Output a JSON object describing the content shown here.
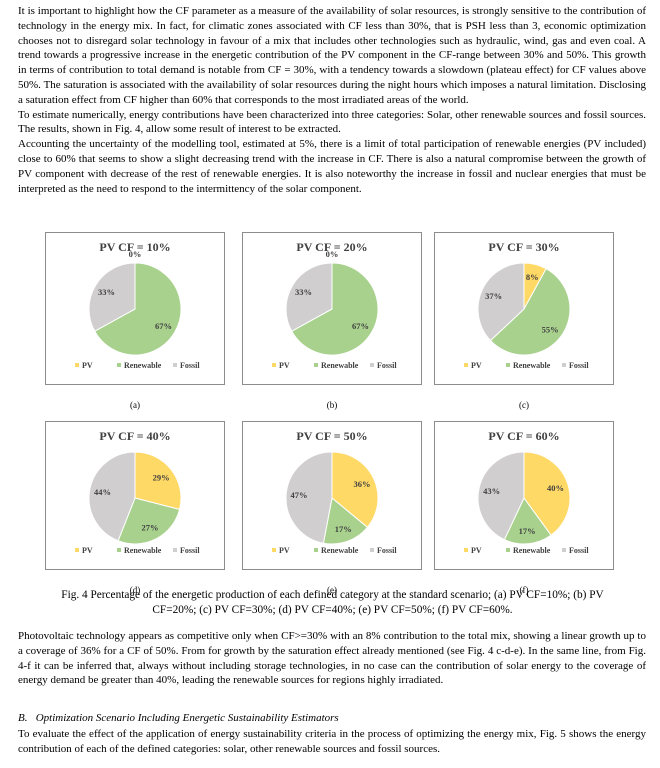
{
  "paragraphs_before": [
    "It is important to highlight how the CF parameter as a measure of the availability of solar resources, is strongly sensitive to the contribution of technology in the energy mix. In fact, for climatic zones associated with CF less than 30%, that is PSH less than 3, economic optimization chooses not to disregard solar technology in favour of a mix that includes other technologies such as hydraulic, wind, gas and even coal. A trend towards a progressive increase in the energetic contribution of the PV component in the CF-range between 30% and 50%. This growth in terms of contribution to total demand is notable from CF = 30%, with a tendency towards a slowdown (plateau effect) for CF values above 50%. The saturation is associated with the availability of solar resources during the night hours which imposes a natural limitation. Disclosing a saturation effect from CF higher than 60% that corresponds to the most irradiated areas of the world.",
    "To estimate numerically, energy contributions have been characterized into three categories: Solar, other renewable sources and fossil sources. The results, shown in Fig. 4, allow some result of interest to be extracted.",
    "Accounting the uncertainty of the modelling tool, estimated at 5%, there is a limit of total participation of renewable energies (PV included) close to 60% that seems to show a slight decreasing trend with the increase in CF. There is also a natural compromise between the growth of PV component with decrease of the rest of renewable energies. It is also noteworthy the increase in fossil and nuclear energies that must be interpreted as the need to respond to the intermittency of the solar component."
  ],
  "figure": {
    "charts": [
      {
        "type": "pie",
        "title": "PV CF = 10%",
        "categories": [
          "PV",
          "Renewable",
          "Fossil"
        ],
        "colors": [
          "#ffd966",
          "#a9d18e",
          "#d0cece"
        ],
        "values": [
          0,
          67,
          33
        ],
        "value_labels": [
          "0%",
          "67%",
          "33%"
        ],
        "sublabel": "(a)"
      },
      {
        "type": "pie",
        "title": "PV CF = 20%",
        "categories": [
          "PV",
          "Renewable",
          "Fossil"
        ],
        "colors": [
          "#ffd966",
          "#a9d18e",
          "#d0cece"
        ],
        "values": [
          0,
          67,
          33
        ],
        "value_labels": [
          "0%",
          "67%",
          "33%"
        ],
        "sublabel": "(b)"
      },
      {
        "type": "pie",
        "title": "PV CF = 30%",
        "categories": [
          "PV",
          "Renewable",
          "Fossil"
        ],
        "colors": [
          "#ffd966",
          "#a9d18e",
          "#d0cece"
        ],
        "values": [
          8,
          55,
          37
        ],
        "value_labels": [
          "8%",
          "55%",
          "37%"
        ],
        "sublabel": "(c)"
      },
      {
        "type": "pie",
        "title": "PV CF = 40%",
        "categories": [
          "PV",
          "Renewable",
          "Fossil"
        ],
        "colors": [
          "#ffd966",
          "#a9d18e",
          "#d0cece"
        ],
        "values": [
          29,
          27,
          44
        ],
        "value_labels": [
          "29%",
          "27%",
          "44%"
        ],
        "sublabel": "(d)"
      },
      {
        "type": "pie",
        "title": "PV CF = 50%",
        "categories": [
          "PV",
          "Renewable",
          "Fossil"
        ],
        "colors": [
          "#ffd966",
          "#a9d18e",
          "#d0cece"
        ],
        "values": [
          36,
          17,
          47
        ],
        "value_labels": [
          "36%",
          "17%",
          "47%"
        ],
        "sublabel": "(e)"
      },
      {
        "type": "pie",
        "title": "PV CF = 60%",
        "categories": [
          "PV",
          "Renewable",
          "Fossil"
        ],
        "colors": [
          "#ffd966",
          "#a9d18e",
          "#d0cece"
        ],
        "values": [
          40,
          17,
          43
        ],
        "value_labels": [
          "40%",
          "17%",
          "43%"
        ],
        "sublabel": "(f)"
      }
    ],
    "caption": "Fig. 4 Percentage of the energetic production of each defined category at the standard scenario; (a) PV CF=10%; (b) PV CF=20%; (c) PV CF=30%; (d) PV CF=40%; (e) PV CF=50%; (f) PV CF=60%."
  },
  "paragraphs_after": [
    "Photovoltaic technology appears as competitive only when CF>=30% with an 8% contribution to the total mix, showing a linear growth up to a coverage of 36% for a CF of 50%. From for growth by the saturation effect already mentioned (see Fig. 4 c-d-e). In the same line, from Fig. 4-f it can be inferred that, always without including storage technologies, in no case can the contribution of solar energy to the coverage of energy demand be greater than 40%, leading the renewable sources for regions highly irradiated."
  ],
  "section_heading": "B.   Optimization Scenario Including Energetic Sustainability Estimators",
  "paragraphs_end": [
    "To evaluate the effect of the application of energy sustainability criteria in the process of optimizing the energy mix, Fig. 5 shows the energy contribution of each of the defined categories: solar, other renewable sources and fossil sources."
  ]
}
